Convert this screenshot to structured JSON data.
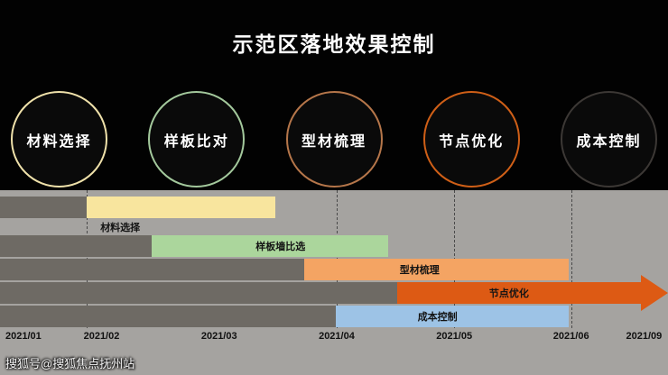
{
  "slide": {
    "title": "示范区落地效果控制",
    "watermark": "搜狐号@搜狐焦点抚州站",
    "background_color": "#020202",
    "gantt_background_color": "#a5a3a0"
  },
  "phases": [
    {
      "label": "材料选择",
      "ring_color": "#efe1aa"
    },
    {
      "label": "样板比对",
      "ring_color": "#a3c89c"
    },
    {
      "label": "型材梳理",
      "ring_color": "#b5764a"
    },
    {
      "label": "节点优化",
      "ring_color": "#cf5f17"
    },
    {
      "label": "成本控制",
      "ring_color": "#3c3835"
    }
  ],
  "chart_data": {
    "type": "gantt",
    "title": "示范区落地效果控制",
    "axis_ticks": [
      "2021/01",
      "2021/02",
      "2021/03",
      "2021/04",
      "2021/05",
      "2021/06",
      "2021/09"
    ],
    "tick_positions_pct": [
      3.5,
      15.2,
      32.8,
      50.4,
      68.0,
      85.5,
      96.4
    ],
    "gridlines_pct": [
      13.0,
      50.4,
      68.0,
      85.5
    ],
    "grid": "dashed-vertical",
    "lead_bar_color": "#6e6a64",
    "tasks": [
      {
        "label": "材料选择",
        "start": "2021/02",
        "end": "2021/03",
        "color": "#f8e59e",
        "gray_end_pct": 13.0,
        "bar_start_pct": 13.0,
        "bar_end_pct": 41.2,
        "label_pct": 18.0,
        "label_below": true,
        "arrow": false
      },
      {
        "label": "样板墙比选",
        "start": "2021/02中",
        "end": "2021/04中",
        "color": "#abd69c",
        "gray_end_pct": 22.7,
        "bar_start_pct": 22.7,
        "bar_end_pct": 58.1,
        "label_pct": 42.0,
        "label_below": false,
        "arrow": false
      },
      {
        "label": "型材梳理",
        "start": "2021/03末",
        "end": "2021/06",
        "color": "#f4a463",
        "gray_end_pct": 45.5,
        "bar_start_pct": 45.5,
        "bar_end_pct": 85.2,
        "label_pct": 62.8,
        "label_below": false,
        "arrow": false
      },
      {
        "label": "节点优化",
        "start": "2021/04中",
        "end": "2021/09+",
        "color": "#dd5a14",
        "gray_end_pct": 59.5,
        "bar_start_pct": 59.5,
        "bar_end_pct": 96.0,
        "label_pct": 76.2,
        "label_below": false,
        "arrow": true
      },
      {
        "label": "成本控制",
        "start": "2021/04",
        "end": "2021/06",
        "color": "#9dc3e6",
        "gray_end_pct": 50.3,
        "bar_start_pct": 50.3,
        "bar_end_pct": 85.2,
        "label_pct": 65.5,
        "label_below": false,
        "arrow": false
      }
    ]
  }
}
